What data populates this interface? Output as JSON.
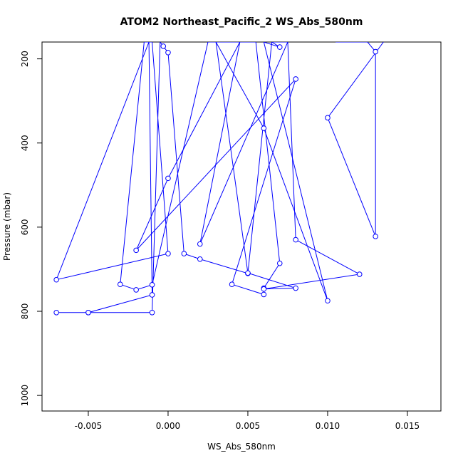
{
  "chart_data": {
    "type": "line",
    "title": "ATOM2 Northeast_Pacific_2 WS_Abs_580nm",
    "xlabel": "WS_Abs_580nm",
    "ylabel": "Pressure (mbar)",
    "xlim": [
      -0.0079,
      0.0171
    ],
    "ylim": [
      1037,
      160
    ],
    "y_reversed": true,
    "x_ticks": [
      -0.005,
      0.0,
      0.005,
      0.01,
      0.015
    ],
    "x_tick_labels": [
      "-0.005",
      "0.000",
      "0.005",
      "0.010",
      "0.015"
    ],
    "y_ticks": [
      200,
      400,
      600,
      800,
      1000
    ],
    "y_tick_labels": [
      "200",
      "400",
      "600",
      "800",
      "1000"
    ],
    "grid": false,
    "legend": "none",
    "series_color": "#0000ff",
    "series": [
      {
        "points": [
          [
            -0.007,
            803
          ],
          [
            -0.005,
            803
          ],
          [
            -0.001,
            803
          ],
          [
            -0.0005,
            160
          ],
          [
            -0.0003,
            170
          ],
          [
            0.0,
            185
          ],
          [
            0.001,
            663
          ],
          [
            0.002,
            676
          ],
          [
            0.005,
            710
          ],
          [
            0.0065,
            160
          ],
          [
            0.0075,
            160
          ],
          [
            0.002,
            640
          ],
          [
            0.0045,
            160
          ],
          [
            0.0,
            484
          ],
          [
            -0.002,
            655
          ],
          [
            0.008,
            248
          ],
          [
            0.004,
            736
          ],
          [
            0.006,
            760
          ],
          [
            0.006,
            745
          ],
          [
            0.007,
            686
          ],
          [
            0.0055,
            160
          ],
          [
            0.0025,
            160
          ],
          [
            -0.001,
            737
          ],
          [
            -0.002,
            749
          ],
          [
            -0.003,
            736
          ],
          [
            -0.0015,
            160
          ],
          [
            -0.001,
            160
          ],
          [
            0.0,
            663
          ],
          [
            -0.007,
            725
          ],
          [
            -0.0012,
            160
          ],
          [
            -0.001,
            761
          ],
          [
            -0.005,
            803
          ]
        ]
      },
      {
        "points": [
          [
            0.0075,
            160
          ],
          [
            0.008,
            630
          ],
          [
            0.012,
            712
          ],
          [
            0.006,
            747
          ],
          [
            0.008,
            745
          ],
          [
            0.005,
            709
          ],
          [
            0.003,
            160
          ],
          [
            0.006,
            365
          ],
          [
            0.01,
            775
          ],
          [
            0.006,
            160
          ],
          [
            0.007,
            172
          ],
          [
            0.0065,
            160
          ]
        ]
      },
      {
        "points": [
          [
            0.0105,
            160
          ],
          [
            0.0125,
            160
          ],
          [
            0.013,
            183
          ],
          [
            0.013,
            622
          ],
          [
            0.01,
            340
          ],
          [
            0.0135,
            160
          ]
        ]
      }
    ]
  }
}
